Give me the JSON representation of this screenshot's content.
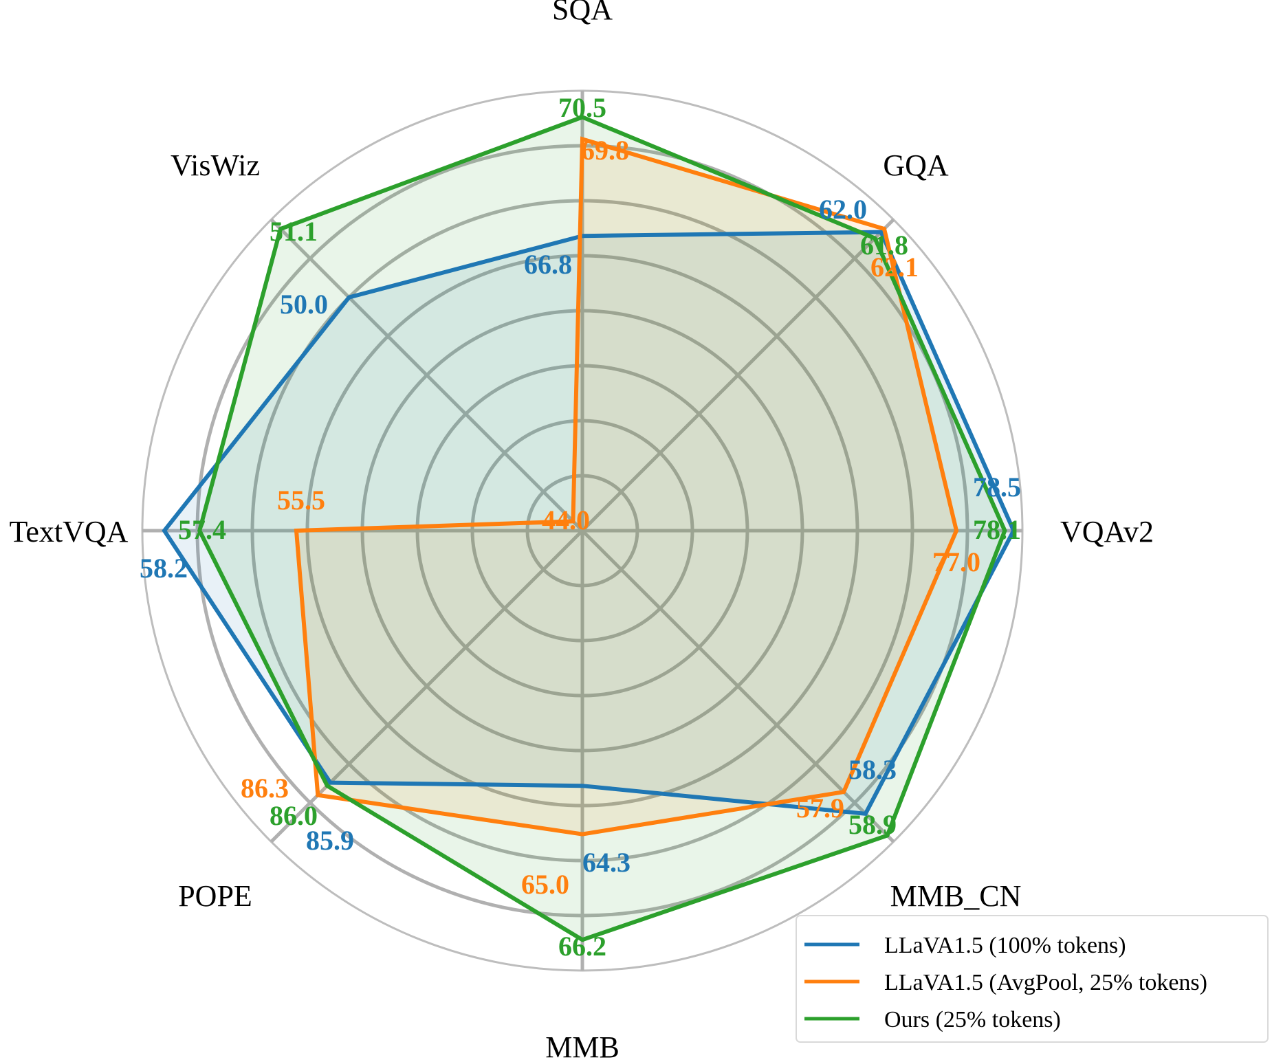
{
  "chart_data": {
    "type": "radar",
    "axes": [
      "SQA",
      "GQA",
      "VQAv2",
      "MMB_CN",
      "MMB",
      "POPE",
      "TextVQA",
      "VisWiz"
    ],
    "series": [
      {
        "name": "LLaVA1.5 (100% tokens)",
        "color": "#1f77b4",
        "labels": [
          "66.8",
          "62.0",
          "78.5",
          "58.3",
          "64.3",
          "85.9",
          "58.2",
          "50.0"
        ],
        "radius_fraction": [
          0.67,
          0.96,
          0.98,
          0.91,
          0.58,
          0.81,
          0.95,
          0.75
        ]
      },
      {
        "name": "LLaVA1.5 (AvgPool, 25% tokens)",
        "color": "#ff7f0e",
        "labels": [
          "69.8",
          "62.1",
          "77.0",
          "57.9",
          "65.0",
          "86.3",
          "55.5",
          "44.0"
        ],
        "radius_fraction": [
          0.89,
          0.97,
          0.85,
          0.84,
          0.69,
          0.85,
          0.65,
          0.03
        ]
      },
      {
        "name": "Ours (25% tokens)",
        "color": "#2ca02c",
        "labels": [
          "70.5",
          "61.8",
          "78.1",
          "58.9",
          "66.2",
          "86.0",
          "57.4",
          "51.1"
        ],
        "radius_fraction": [
          0.94,
          0.94,
          0.96,
          0.98,
          0.93,
          0.82,
          0.87,
          0.97
        ]
      }
    ],
    "legend_position": "bottom-right",
    "grid": true
  }
}
